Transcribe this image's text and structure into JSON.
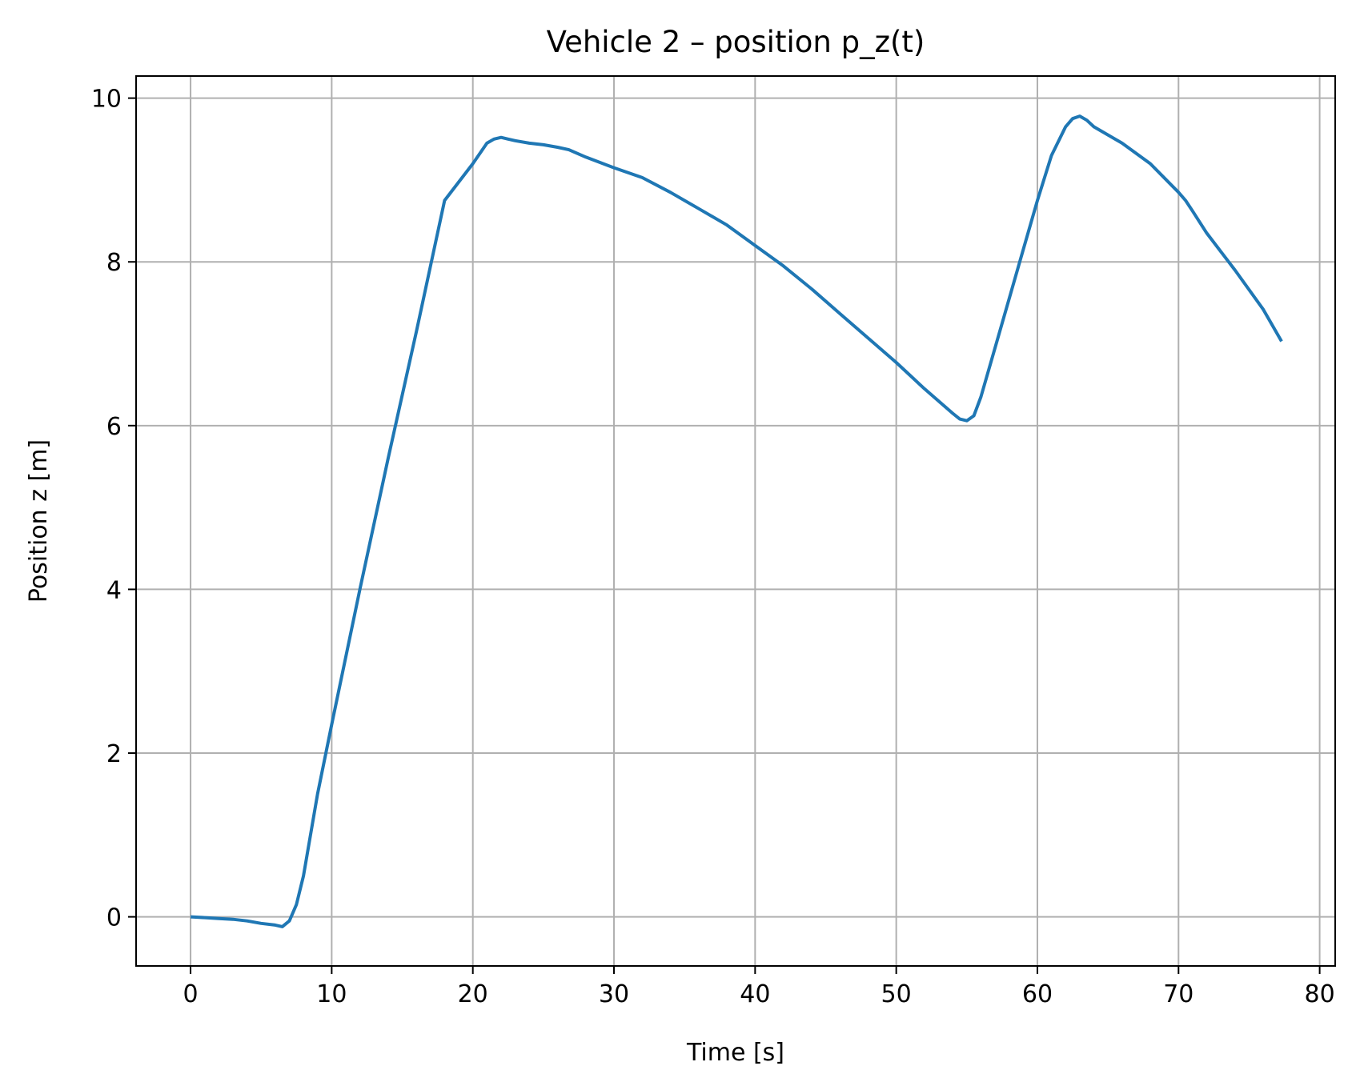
{
  "chart_data": {
    "type": "line",
    "title": "Vehicle 2 – position p_z(t)",
    "xlabel": "Time [s]",
    "ylabel": "Position z [m]",
    "xlim": [
      -3.86,
      81.1
    ],
    "ylim": [
      -0.6,
      10.27
    ],
    "xticks": [
      0,
      10,
      20,
      30,
      40,
      50,
      60,
      70,
      80
    ],
    "yticks": [
      0,
      2,
      4,
      6,
      8,
      10
    ],
    "grid": true,
    "line_color": "#1f77b4",
    "series": [
      {
        "x": [
          0,
          1,
          2,
          3,
          4,
          5,
          6,
          6.5,
          7,
          7.5,
          8,
          8.5,
          9,
          10,
          12,
          14,
          16,
          18,
          20,
          21,
          21.5,
          22,
          22.5,
          23,
          24,
          25,
          26,
          26.8,
          28,
          30,
          32,
          34,
          36,
          38,
          40,
          42,
          44,
          46,
          48,
          50,
          52,
          54,
          54.5,
          55,
          55.5,
          56,
          57,
          58,
          59,
          60,
          61,
          62,
          62.5,
          63,
          63.5,
          64,
          66,
          68,
          70,
          70.5,
          71,
          72,
          74,
          76,
          77.3
        ],
        "y": [
          0,
          -0.01,
          -0.02,
          -0.03,
          -0.05,
          -0.08,
          -0.1,
          -0.12,
          -0.05,
          0.15,
          0.5,
          1.0,
          1.5,
          2.35,
          4.0,
          5.6,
          7.15,
          8.75,
          9.2,
          9.45,
          9.5,
          9.52,
          9.5,
          9.48,
          9.45,
          9.43,
          9.4,
          9.37,
          9.28,
          9.15,
          9.03,
          8.85,
          8.65,
          8.45,
          8.2,
          7.95,
          7.67,
          7.37,
          7.07,
          6.77,
          6.45,
          6.15,
          6.08,
          6.06,
          6.12,
          6.35,
          6.95,
          7.55,
          8.15,
          8.75,
          9.3,
          9.65,
          9.75,
          9.78,
          9.73,
          9.65,
          9.45,
          9.2,
          8.85,
          8.75,
          8.62,
          8.35,
          7.9,
          7.42,
          7.03
        ]
      }
    ]
  }
}
